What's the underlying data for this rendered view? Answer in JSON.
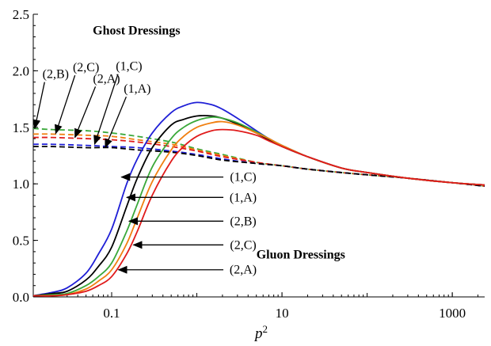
{
  "chart_data": {
    "type": "line",
    "title": "",
    "xlabel": "p",
    "xlabel_superscript": "2",
    "ylabel": "",
    "x_scale": "log",
    "xlim": [
      0.012,
      2400
    ],
    "ylim": [
      0,
      2.5
    ],
    "x_ticks": [
      {
        "value": 0.1,
        "label": "0.1"
      },
      {
        "value": 10,
        "label": "10"
      },
      {
        "value": 1000,
        "label": "1000"
      }
    ],
    "y_ticks": [
      {
        "value": 0,
        "label": "0.0"
      },
      {
        "value": 0.5,
        "label": "0.5"
      },
      {
        "value": 1,
        "label": "1.0"
      },
      {
        "value": 1.5,
        "label": "1.5"
      },
      {
        "value": 2,
        "label": "2.0"
      },
      {
        "value": 2.5,
        "label": "2.5"
      }
    ],
    "grid": false,
    "group_titles": [
      {
        "text": "Ghost Dressings",
        "anchor_x": 0.06,
        "anchor_y": 2.32
      },
      {
        "text": "Gluon Dressings",
        "anchor_x": 5,
        "anchor_y": 0.34
      }
    ],
    "series": [
      {
        "kind": "gluon",
        "label": "(1,C)",
        "color": "#1f1fd6",
        "dashed": false,
        "x": [
          0.012,
          0.02,
          0.03,
          0.05,
          0.07,
          0.1,
          0.15,
          0.2,
          0.3,
          0.5,
          0.7,
          1,
          1.5,
          2,
          3,
          5,
          7,
          10,
          20,
          50,
          100,
          300,
          1000,
          2400
        ],
        "y": [
          0.01,
          0.04,
          0.08,
          0.21,
          0.38,
          0.6,
          1.0,
          1.22,
          1.45,
          1.63,
          1.69,
          1.72,
          1.7,
          1.66,
          1.58,
          1.47,
          1.4,
          1.34,
          1.24,
          1.14,
          1.1,
          1.05,
          1.01,
          0.99
        ]
      },
      {
        "kind": "gluon",
        "label": "(1,A)",
        "color": "#000000",
        "dashed": false,
        "x": [
          0.012,
          0.02,
          0.03,
          0.05,
          0.07,
          0.1,
          0.15,
          0.2,
          0.3,
          0.5,
          0.7,
          1,
          1.5,
          2,
          3,
          5,
          7,
          10,
          20,
          50,
          100,
          300,
          1000,
          2400
        ],
        "y": [
          0.01,
          0.03,
          0.05,
          0.15,
          0.27,
          0.44,
          0.8,
          1.05,
          1.32,
          1.52,
          1.57,
          1.6,
          1.6,
          1.58,
          1.53,
          1.45,
          1.39,
          1.33,
          1.24,
          1.14,
          1.1,
          1.05,
          1.01,
          0.99
        ]
      },
      {
        "kind": "gluon",
        "label": "(2,B)",
        "color": "#3aa83a",
        "dashed": false,
        "x": [
          0.012,
          0.02,
          0.03,
          0.05,
          0.07,
          0.1,
          0.15,
          0.2,
          0.3,
          0.5,
          0.7,
          1,
          1.5,
          2,
          3,
          5,
          7,
          10,
          20,
          50,
          100,
          300,
          1000,
          2400
        ],
        "y": [
          0.01,
          0.02,
          0.03,
          0.1,
          0.18,
          0.3,
          0.58,
          0.82,
          1.15,
          1.4,
          1.5,
          1.56,
          1.59,
          1.58,
          1.54,
          1.46,
          1.4,
          1.34,
          1.24,
          1.14,
          1.1,
          1.05,
          1.01,
          0.99
        ]
      },
      {
        "kind": "gluon",
        "label": "(2,C)",
        "color": "#f07f10",
        "dashed": false,
        "x": [
          0.012,
          0.02,
          0.03,
          0.05,
          0.07,
          0.1,
          0.15,
          0.2,
          0.3,
          0.5,
          0.7,
          1,
          1.5,
          2,
          3,
          5,
          7,
          10,
          20,
          50,
          100,
          300,
          1000,
          2400
        ],
        "y": [
          0.01,
          0.01,
          0.02,
          0.07,
          0.14,
          0.24,
          0.47,
          0.7,
          1.02,
          1.3,
          1.42,
          1.5,
          1.54,
          1.55,
          1.52,
          1.45,
          1.4,
          1.34,
          1.24,
          1.14,
          1.1,
          1.05,
          1.01,
          0.99
        ]
      },
      {
        "kind": "gluon",
        "label": "(2,A)",
        "color": "#e01b1b",
        "dashed": false,
        "x": [
          0.012,
          0.02,
          0.03,
          0.05,
          0.07,
          0.1,
          0.15,
          0.2,
          0.3,
          0.5,
          0.7,
          1,
          1.5,
          2,
          3,
          5,
          7,
          10,
          20,
          50,
          100,
          300,
          1000,
          2400
        ],
        "y": [
          0.01,
          0.01,
          0.02,
          0.05,
          0.1,
          0.18,
          0.38,
          0.58,
          0.9,
          1.2,
          1.33,
          1.42,
          1.47,
          1.48,
          1.47,
          1.43,
          1.38,
          1.33,
          1.24,
          1.14,
          1.1,
          1.05,
          1.01,
          0.99
        ]
      },
      {
        "kind": "ghost",
        "label": "(2,B)",
        "color": "#3aa83a",
        "dashed": true,
        "x": [
          0.012,
          0.02,
          0.05,
          0.1,
          0.2,
          0.5,
          1,
          2,
          5,
          10,
          20,
          50,
          100,
          300,
          1000,
          2400
        ],
        "y": [
          1.49,
          1.48,
          1.47,
          1.45,
          1.42,
          1.37,
          1.31,
          1.26,
          1.19,
          1.16,
          1.13,
          1.1,
          1.08,
          1.05,
          1.01,
          0.98
        ]
      },
      {
        "kind": "ghost",
        "label": "(2,C)",
        "color": "#f07f10",
        "dashed": true,
        "x": [
          0.012,
          0.02,
          0.05,
          0.1,
          0.2,
          0.5,
          1,
          2,
          5,
          10,
          20,
          50,
          100,
          300,
          1000,
          2400
        ],
        "y": [
          1.44,
          1.44,
          1.43,
          1.42,
          1.39,
          1.35,
          1.3,
          1.25,
          1.19,
          1.16,
          1.13,
          1.1,
          1.08,
          1.05,
          1.01,
          0.98
        ]
      },
      {
        "kind": "ghost",
        "label": "(2,A)",
        "color": "#e01b1b",
        "dashed": true,
        "x": [
          0.012,
          0.02,
          0.05,
          0.1,
          0.2,
          0.5,
          1,
          2,
          5,
          10,
          20,
          50,
          100,
          300,
          1000,
          2400
        ],
        "y": [
          1.41,
          1.41,
          1.4,
          1.39,
          1.37,
          1.33,
          1.29,
          1.24,
          1.19,
          1.16,
          1.13,
          1.1,
          1.08,
          1.05,
          1.01,
          0.98
        ]
      },
      {
        "kind": "ghost",
        "label": "(1,C)",
        "color": "#1f1fd6",
        "dashed": true,
        "x": [
          0.012,
          0.02,
          0.05,
          0.1,
          0.2,
          0.5,
          1,
          2,
          5,
          10,
          20,
          50,
          100,
          300,
          1000,
          2400
        ],
        "y": [
          1.35,
          1.35,
          1.34,
          1.33,
          1.32,
          1.29,
          1.26,
          1.22,
          1.18,
          1.16,
          1.13,
          1.1,
          1.08,
          1.05,
          1.01,
          0.98
        ]
      },
      {
        "kind": "ghost",
        "label": "(1,A)",
        "color": "#000000",
        "dashed": true,
        "x": [
          0.012,
          0.02,
          0.05,
          0.1,
          0.2,
          0.5,
          1,
          2,
          5,
          10,
          20,
          50,
          100,
          300,
          1000,
          2400
        ],
        "y": [
          1.33,
          1.33,
          1.32,
          1.32,
          1.3,
          1.28,
          1.25,
          1.21,
          1.18,
          1.16,
          1.13,
          1.1,
          1.08,
          1.05,
          1.01,
          0.98
        ]
      }
    ],
    "annotations": [
      {
        "group": "ghost",
        "label": "(2,B)",
        "label_x": 0.022,
        "label_y": 1.97,
        "arrow_to_x": 0.0125,
        "arrow_to_y": 1.49
      },
      {
        "group": "ghost",
        "label": "(2,C)",
        "label_x": 0.05,
        "label_y": 2.03,
        "arrow_to_x": 0.022,
        "arrow_to_y": 1.445
      },
      {
        "group": "ghost",
        "label": "(2,A)",
        "label_x": 0.087,
        "label_y": 1.93,
        "arrow_to_x": 0.037,
        "arrow_to_y": 1.41
      },
      {
        "group": "ghost",
        "label": "(1,C)",
        "label_x": 0.16,
        "label_y": 2.04,
        "arrow_to_x": 0.063,
        "arrow_to_y": 1.35
      },
      {
        "group": "ghost",
        "label": "(1,A)",
        "label_x": 0.2,
        "label_y": 1.84,
        "arrow_to_x": 0.084,
        "arrow_to_y": 1.32
      },
      {
        "group": "gluon",
        "label": "(1,C)",
        "label_x": 3.5,
        "label_y": 1.06,
        "arrow_to_x": 0.13,
        "arrow_to_y": 1.06
      },
      {
        "group": "gluon",
        "label": "(1,A)",
        "label_x": 3.5,
        "label_y": 0.88,
        "arrow_to_x": 0.15,
        "arrow_to_y": 0.88
      },
      {
        "group": "gluon",
        "label": "(2,B)",
        "label_x": 3.5,
        "label_y": 0.67,
        "arrow_to_x": 0.16,
        "arrow_to_y": 0.67
      },
      {
        "group": "gluon",
        "label": "(2,C)",
        "label_x": 3.5,
        "label_y": 0.46,
        "arrow_to_x": 0.18,
        "arrow_to_y": 0.46
      },
      {
        "group": "gluon",
        "label": "(2,A)",
        "label_x": 3.5,
        "label_y": 0.24,
        "arrow_to_x": 0.12,
        "arrow_to_y": 0.24
      }
    ]
  }
}
